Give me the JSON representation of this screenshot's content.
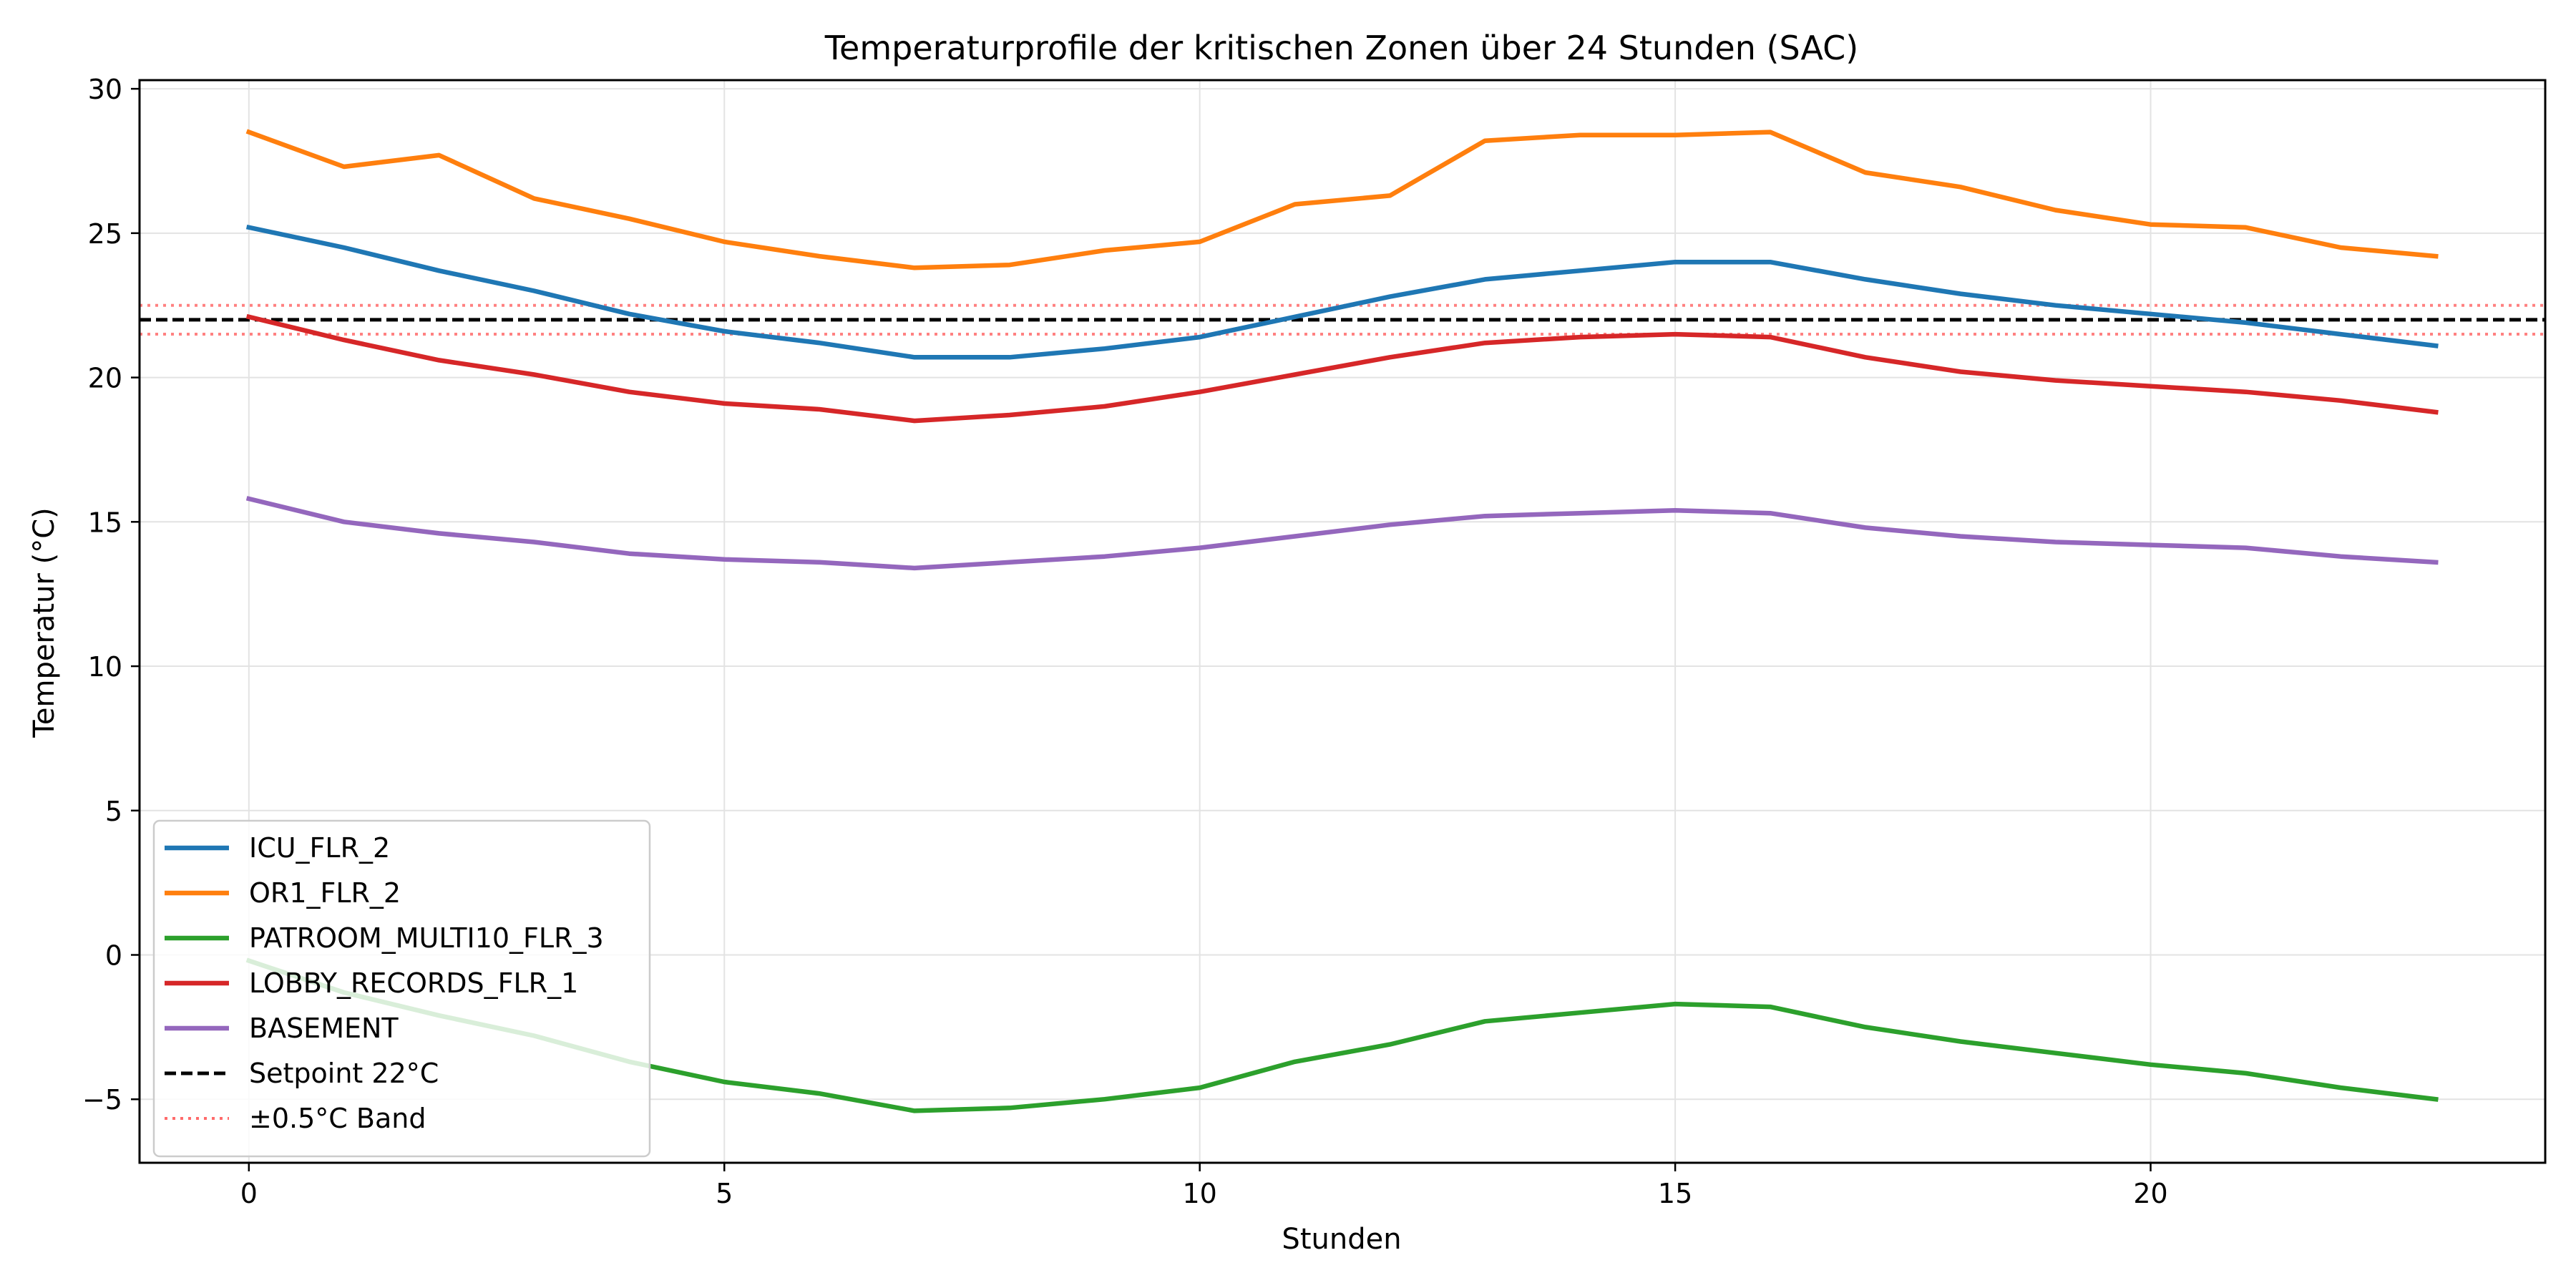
{
  "chart_data": {
    "type": "line",
    "title": "Temperaturprofile der kritischen Zonen über 24 Stunden (SAC)",
    "xlabel": "Stunden",
    "ylabel": "Temperatur (°C)",
    "xlim": [
      -1.15,
      24.15
    ],
    "ylim": [
      -7.2,
      30.3
    ],
    "xticks": [
      0,
      5,
      10,
      15,
      20
    ],
    "yticks": [
      -5,
      0,
      5,
      10,
      15,
      20,
      25,
      30
    ],
    "grid": true,
    "legend_position": "lower left",
    "x": [
      0,
      1,
      2,
      3,
      4,
      5,
      6,
      7,
      8,
      9,
      10,
      11,
      12,
      13,
      14,
      15,
      16,
      17,
      18,
      19,
      20,
      21,
      22,
      23
    ],
    "series": [
      {
        "name": "ICU_FLR_2",
        "color": "#1f77b4",
        "style": "solid",
        "values": [
          25.2,
          24.5,
          23.7,
          23.0,
          22.2,
          21.6,
          21.2,
          20.7,
          20.7,
          21.0,
          21.4,
          22.1,
          22.8,
          23.4,
          23.7,
          24.0,
          24.0,
          23.4,
          22.9,
          22.5,
          22.2,
          21.9,
          21.5,
          21.1
        ]
      },
      {
        "name": "OR1_FLR_2",
        "color": "#ff7f0e",
        "style": "solid",
        "values": [
          28.5,
          27.3,
          27.7,
          26.2,
          25.5,
          24.7,
          24.2,
          23.8,
          23.9,
          24.4,
          24.7,
          26.0,
          26.3,
          28.2,
          28.4,
          28.4,
          28.5,
          27.1,
          26.6,
          25.8,
          25.3,
          25.2,
          24.5,
          24.2
        ]
      },
      {
        "name": "PATROOM_MULTI10_FLR_3",
        "color": "#2ca02c",
        "style": "solid",
        "values": [
          -0.2,
          -1.3,
          -2.1,
          -2.8,
          -3.7,
          -4.4,
          -4.8,
          -5.4,
          -5.3,
          -5.0,
          -4.6,
          -3.7,
          -3.1,
          -2.3,
          -2.0,
          -1.7,
          -1.8,
          -2.5,
          -3.0,
          -3.4,
          -3.8,
          -4.1,
          -4.6,
          -5.0
        ]
      },
      {
        "name": "LOBBY_RECORDS_FLR_1",
        "color": "#d62728",
        "style": "solid",
        "values": [
          22.1,
          21.3,
          20.6,
          20.1,
          19.5,
          19.1,
          18.9,
          18.5,
          18.7,
          19.0,
          19.5,
          20.1,
          20.7,
          21.2,
          21.4,
          21.5,
          21.4,
          20.7,
          20.2,
          19.9,
          19.7,
          19.5,
          19.2,
          18.8
        ]
      },
      {
        "name": "BASEMENT",
        "color": "#9467bd",
        "style": "solid",
        "values": [
          15.8,
          15.0,
          14.6,
          14.3,
          13.9,
          13.7,
          13.6,
          13.4,
          13.6,
          13.8,
          14.1,
          14.5,
          14.9,
          15.2,
          15.3,
          15.4,
          15.3,
          14.8,
          14.5,
          14.3,
          14.2,
          14.1,
          13.8,
          13.6
        ]
      }
    ],
    "reference_lines": [
      {
        "name": "Setpoint 22°C",
        "y": 22,
        "color": "#000000",
        "style": "dashed"
      },
      {
        "name": "±0.5°C Band",
        "y": 22.5,
        "color": "#ff6b6b",
        "style": "dotted"
      },
      {
        "name": "",
        "y": 21.5,
        "color": "#ff6b6b",
        "style": "dotted"
      }
    ]
  }
}
